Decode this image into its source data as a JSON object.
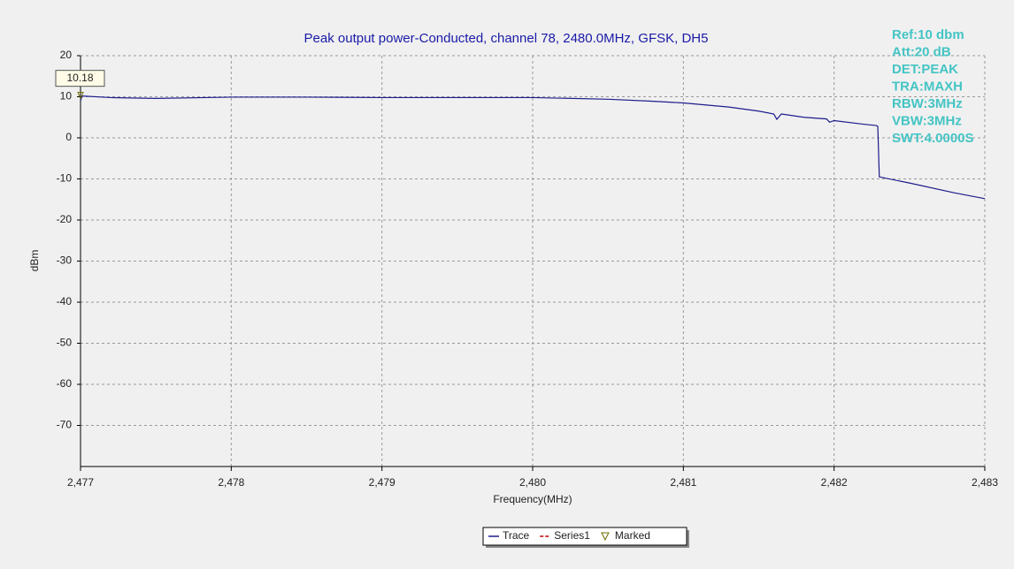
{
  "chart_data": {
    "type": "line",
    "title": "Peak output power-Conducted, channel 78, 2480.0MHz, GFSK, DH5",
    "x_label": "Frequency(MHz)",
    "y_label": "dBm",
    "annotations": [
      "Ref:10 dbm",
      "Att:20 dB",
      "DET:PEAK",
      "TRA:MAXH",
      "RBW:3MHz",
      "VBW:3MHz",
      "SWT:4.0000S"
    ],
    "xlim": [
      2477,
      2483
    ],
    "xticks": [
      {
        "value": 2477,
        "label": "2,477"
      },
      {
        "value": 2478,
        "label": "2,478"
      },
      {
        "value": 2479,
        "label": "2,479"
      },
      {
        "value": 2480,
        "label": "2,480"
      },
      {
        "value": 2481,
        "label": "2,481"
      },
      {
        "value": 2482,
        "label": "2,482"
      },
      {
        "value": 2483,
        "label": "2,483"
      }
    ],
    "ylim": [
      -80,
      20
    ],
    "yticks": [
      -70,
      -60,
      -50,
      -40,
      -30,
      -20,
      -10,
      0,
      10,
      20
    ],
    "grid": true,
    "legend": "bottom",
    "series": [
      {
        "name": "Trace",
        "color": "#1c1c8c",
        "x": [
          2477.0,
          2477.01,
          2477.2,
          2477.5,
          2478.0,
          2478.5,
          2479.0,
          2479.5,
          2480.0,
          2480.5,
          2480.8,
          2481.0,
          2481.3,
          2481.5,
          2481.6,
          2481.62,
          2481.65,
          2481.8,
          2481.95,
          2481.97,
          2482.0,
          2482.2,
          2482.28,
          2482.29,
          2482.3,
          2482.5,
          2482.8,
          2483.0
        ],
        "values": [
          9.0,
          10.18,
          9.8,
          9.6,
          9.9,
          9.9,
          9.8,
          9.8,
          9.8,
          9.4,
          8.9,
          8.5,
          7.5,
          6.5,
          5.8,
          4.5,
          5.8,
          5.0,
          4.6,
          3.8,
          4.2,
          3.3,
          3.0,
          2.8,
          -9.5,
          -11.0,
          -13.4,
          -14.8
        ]
      },
      {
        "name": "Series1",
        "color": "#c00000",
        "x": [],
        "values": []
      },
      {
        "name": "Marked",
        "color": "#6b6b00",
        "x": [
          2477
        ],
        "values": [
          10.18
        ]
      }
    ]
  }
}
